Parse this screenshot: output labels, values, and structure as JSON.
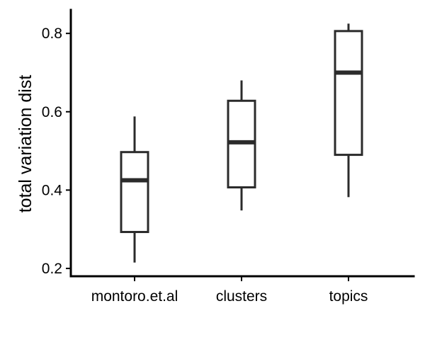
{
  "chart_data": {
    "type": "box",
    "title": "",
    "xlabel": "",
    "ylabel": "total variation dist",
    "ylim": [
      0.18,
      0.86
    ],
    "yticks": [
      0.2,
      0.4,
      0.6,
      0.8
    ],
    "ytick_labels": [
      "0.2",
      "0.4",
      "0.6",
      "0.8"
    ],
    "grid": false,
    "legend": "none",
    "categories": [
      "montoro.et.al",
      "clusters",
      "topics"
    ],
    "boxes": [
      {
        "category": "montoro.et.al",
        "whisker_low": 0.215,
        "q1": 0.293,
        "median": 0.425,
        "q3": 0.497,
        "whisker_high": 0.588
      },
      {
        "category": "clusters",
        "whisker_low": 0.348,
        "q1": 0.407,
        "median": 0.522,
        "q3": 0.628,
        "whisker_high": 0.68
      },
      {
        "category": "topics",
        "whisker_low": 0.382,
        "q1": 0.49,
        "median": 0.7,
        "q3": 0.806,
        "whisker_high": 0.825
      }
    ],
    "colors": {
      "box_stroke": "#2b2b2b",
      "box_fill": "#ffffff",
      "axis": "#000000"
    }
  }
}
